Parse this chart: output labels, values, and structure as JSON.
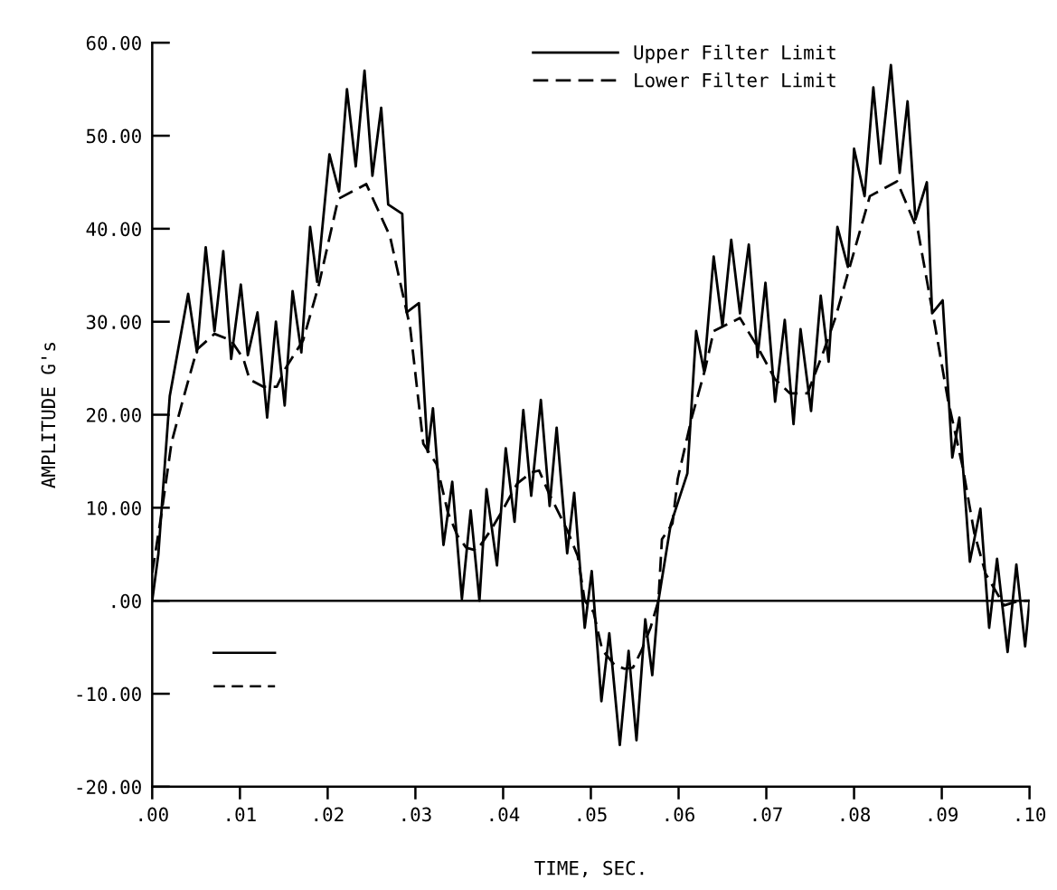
{
  "chart_data": {
    "type": "line",
    "xlabel": "TIME, SEC.",
    "ylabel": "AMPLITUDE G's",
    "xlim": [
      0,
      0.1
    ],
    "ylim": [
      -20,
      60
    ],
    "xticks": [
      {
        "value": 0,
        "label": ".00"
      },
      {
        "value": 0.01,
        "label": ".01"
      },
      {
        "value": 0.02,
        "label": ".02"
      },
      {
        "value": 0.03,
        "label": ".03"
      },
      {
        "value": 0.04,
        "label": ".04"
      },
      {
        "value": 0.05,
        "label": ".05"
      },
      {
        "value": 0.06,
        "label": ".06"
      },
      {
        "value": 0.07,
        "label": ".07"
      },
      {
        "value": 0.08,
        "label": ".08"
      },
      {
        "value": 0.09,
        "label": ".09"
      },
      {
        "value": 0.1,
        "label": ".10"
      }
    ],
    "yticks": [
      {
        "value": -20,
        "label": "-20.00"
      },
      {
        "value": -10,
        "label": "-10.00"
      },
      {
        "value": 0,
        "label": ".00"
      },
      {
        "value": 10,
        "label": "10.00"
      },
      {
        "value": 20,
        "label": "20.00"
      },
      {
        "value": 30,
        "label": "30.00"
      },
      {
        "value": 40,
        "label": "40.00"
      },
      {
        "value": 50,
        "label": "50.00"
      },
      {
        "value": 60,
        "label": "60.00"
      }
    ],
    "grid": false,
    "legend": "top right",
    "marker": "none",
    "ref_lines": [
      {
        "axis": "y",
        "value": 0,
        "color": "#000000",
        "line_style": "solid"
      }
    ],
    "series": [
      {
        "name": "Upper Filter Limit",
        "color": "#000000",
        "line_style": "solid",
        "x": [
          0,
          0.0007,
          0.002,
          0.0041,
          0.0051,
          0.0061,
          0.0071,
          0.0081,
          0.009,
          0.0101,
          0.0109,
          0.012,
          0.0131,
          0.0141,
          0.0151,
          0.016,
          0.017,
          0.018,
          0.0188,
          0.0202,
          0.0213,
          0.0222,
          0.0232,
          0.0242,
          0.0251,
          0.0261,
          0.0269,
          0.0285,
          0.029,
          0.0304,
          0.0314,
          0.032,
          0.0332,
          0.0342,
          0.0353,
          0.0363,
          0.0373,
          0.0381,
          0.0393,
          0.0403,
          0.0413,
          0.0423,
          0.0432,
          0.0443,
          0.0453,
          0.0461,
          0.0473,
          0.0481,
          0.0493,
          0.0501,
          0.0512,
          0.0521,
          0.0533,
          0.0543,
          0.0552,
          0.0562,
          0.057,
          0.0577,
          0.0591,
          0.061,
          0.062,
          0.0629,
          0.064,
          0.065,
          0.066,
          0.067,
          0.068,
          0.069,
          0.0699,
          0.071,
          0.0721,
          0.0731,
          0.0739,
          0.0751,
          0.0762,
          0.0771,
          0.0781,
          0.0793,
          0.08,
          0.0812,
          0.0822,
          0.083,
          0.0842,
          0.0852,
          0.0861,
          0.087,
          0.0883,
          0.0889,
          0.0901,
          0.0912,
          0.092,
          0.0932,
          0.0944,
          0.0954,
          0.0963,
          0.0975,
          0.0985,
          0.0995,
          0.1
        ],
        "values": [
          0,
          5,
          22,
          33,
          26.7,
          38,
          29,
          37.6,
          26,
          34,
          26.4,
          31,
          19.7,
          30,
          21,
          33.3,
          26.7,
          40.2,
          34.3,
          48,
          44,
          55,
          46.7,
          57,
          45.7,
          53,
          42.6,
          41.6,
          31,
          32,
          16,
          20.7,
          6,
          12.8,
          0.2,
          9.7,
          0,
          12,
          3.8,
          16.4,
          8.5,
          20.5,
          11.3,
          21.6,
          10.2,
          18.6,
          5.1,
          11.6,
          -2.9,
          3.2,
          -10.8,
          -3.5,
          -15.5,
          -5.4,
          -15,
          -2,
          -8,
          0,
          8.2,
          13.7,
          29,
          24.7,
          37,
          29.5,
          38.8,
          30.9,
          38.3,
          26.2,
          34.2,
          21.4,
          30.2,
          19,
          29.2,
          20.4,
          32.8,
          25.7,
          40.2,
          35.9,
          48.6,
          43.5,
          55.2,
          47,
          57.6,
          46,
          53.7,
          41,
          45,
          30.9,
          32.3,
          15.4,
          19.7,
          4.2,
          9.9,
          -2.9,
          4.5,
          -5.5,
          3.9,
          -4.9,
          0
        ]
      },
      {
        "name": "Lower Filter Limit",
        "color": "#000000",
        "line_style": "dashed",
        "x": [
          0,
          0.001,
          0.0022,
          0.0035,
          0.0051,
          0.0071,
          0.009,
          0.0104,
          0.0111,
          0.0127,
          0.0142,
          0.0152,
          0.0172,
          0.019,
          0.0212,
          0.0244,
          0.0271,
          0.0294,
          0.0309,
          0.0324,
          0.0337,
          0.0348,
          0.0358,
          0.037,
          0.0386,
          0.0398,
          0.0416,
          0.0432,
          0.0441,
          0.0452,
          0.0473,
          0.0485,
          0.0493,
          0.0503,
          0.0513,
          0.0527,
          0.0538,
          0.0548,
          0.0558,
          0.0568,
          0.0577,
          0.0581,
          0.0593,
          0.0599,
          0.0615,
          0.063,
          0.064,
          0.067,
          0.069,
          0.071,
          0.0727,
          0.0747,
          0.0766,
          0.0779,
          0.0793,
          0.0818,
          0.0849,
          0.0873,
          0.0893,
          0.0907,
          0.0924,
          0.0937,
          0.095,
          0.0971,
          0.0988,
          0.1
        ],
        "values": [
          3,
          9,
          17,
          21.6,
          27,
          28.7,
          28,
          26,
          23.8,
          23,
          23,
          25,
          28,
          34,
          43.2,
          44.8,
          39.2,
          29.4,
          16.9,
          14.7,
          9.5,
          7,
          5.7,
          5.4,
          7.6,
          9.5,
          12.6,
          13.8,
          14,
          11.6,
          7.6,
          4.8,
          0,
          -1.2,
          -5.3,
          -6.9,
          -7.3,
          -7.2,
          -5.3,
          -2.9,
          0,
          6.6,
          8.3,
          13.1,
          19.7,
          24.8,
          29,
          30.4,
          27.3,
          23.8,
          22.3,
          22.3,
          27,
          30.5,
          35.2,
          43.5,
          45.1,
          39.7,
          29.2,
          21.6,
          14.3,
          7.3,
          2.9,
          -0.5,
          0,
          0
        ]
      }
    ]
  }
}
